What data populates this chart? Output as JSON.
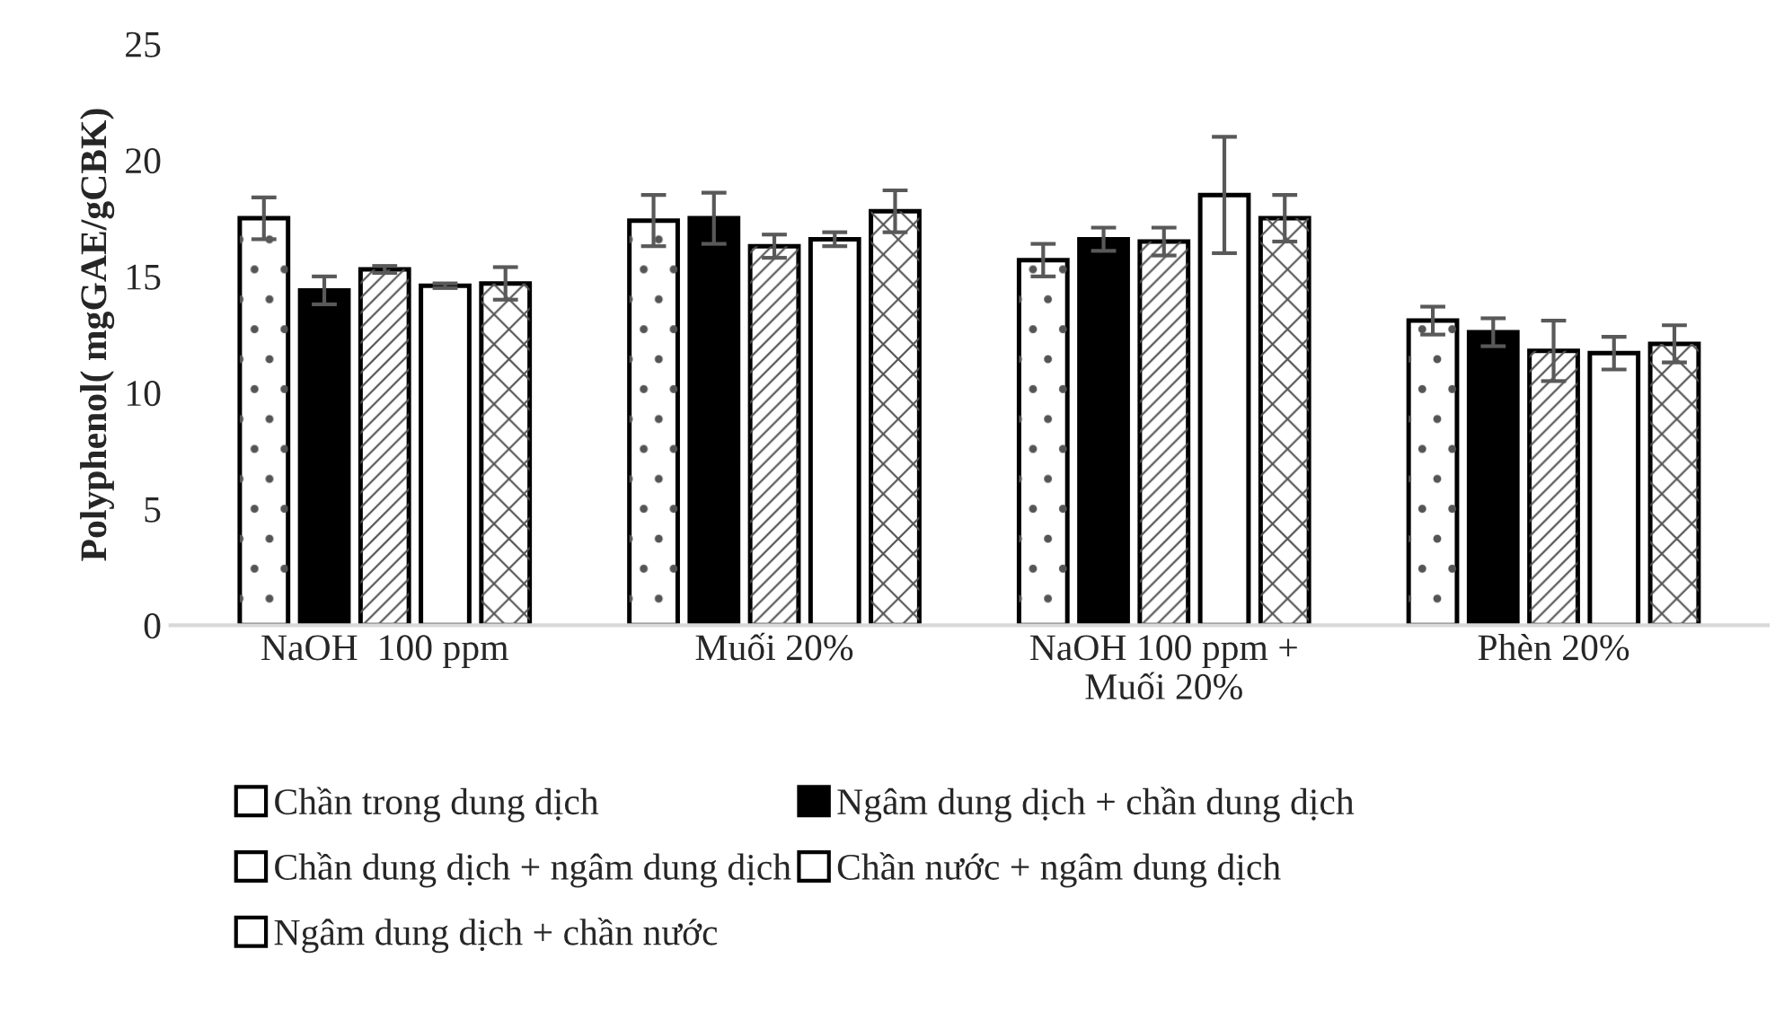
{
  "chart_data": {
    "type": "bar",
    "ylabel": "Polyphenol( mgGAE/gCBK)",
    "categories": [
      "NaOH  100 ppm",
      "Muối 20%",
      "NaOH 100 ppm +\nMuối 20%",
      "Phèn 20%"
    ],
    "series": [
      {
        "name": "Chần trong dung dịch",
        "color": "#ffffff",
        "values": [
          17.5,
          17.4,
          15.7,
          13.1
        ],
        "errors": [
          0.9,
          1.1,
          0.7,
          0.6
        ]
      },
      {
        "name": "Ngâm dung dịch + chần dung dịch",
        "color": "#000000",
        "values": [
          14.4,
          17.5,
          16.6,
          12.6
        ],
        "errors": [
          0.6,
          1.1,
          0.5,
          0.6
        ]
      },
      {
        "name": "Chần dung dịch + ngâm dung dịch",
        "color": "#ffffff",
        "values": [
          15.3,
          16.3,
          16.5,
          11.8
        ],
        "errors": [
          0.15,
          0.5,
          0.6,
          1.3
        ]
      },
      {
        "name": "Chần nước + ngâm dung dịch",
        "color": "#ffffff",
        "values": [
          14.6,
          16.6,
          18.5,
          11.7
        ],
        "errors": [
          0.1,
          0.3,
          2.5,
          0.7
        ]
      },
      {
        "name": "Ngâm dung dịch + chần nước",
        "color": "#ffffff",
        "values": [
          14.7,
          17.8,
          17.5,
          12.1
        ],
        "errors": [
          0.7,
          0.9,
          1.0,
          0.8
        ]
      }
    ],
    "ylim": [
      0,
      25
    ],
    "yticks": [
      0,
      5,
      10,
      15,
      20,
      25
    ],
    "grid": false,
    "legend": "bottom"
  }
}
